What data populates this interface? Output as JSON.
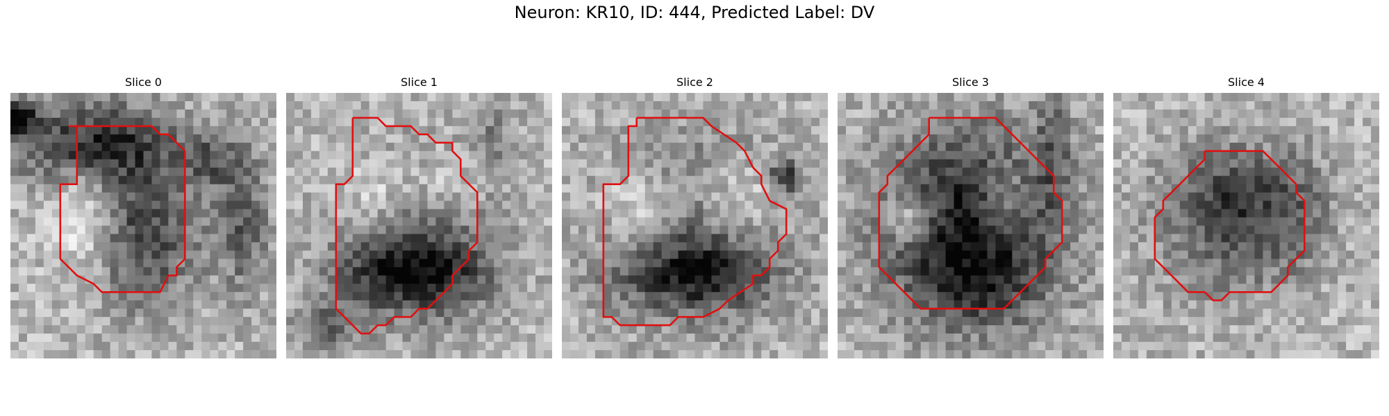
{
  "figure": {
    "title": "Neuron: KR10, ID: 444, Predicted Label: DV",
    "outline_color": "#e01010"
  },
  "panels": [
    {
      "title": "Slice 0"
    },
    {
      "title": "Slice 1"
    },
    {
      "title": "Slice 2"
    },
    {
      "title": "Slice 3"
    },
    {
      "title": "Slice 4"
    }
  ]
}
